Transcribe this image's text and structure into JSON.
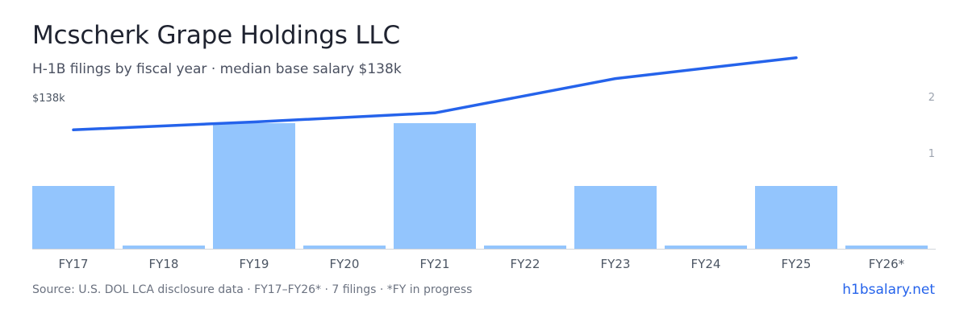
{
  "header": {
    "title": "Mcscherk Grape Holdings LLC",
    "subtitle": "H-1B filings by fiscal year · median base salary $138k"
  },
  "footer": {
    "source": "Source: U.S. DOL LCA disclosure data · FY17–FY26* · 7 filings · *FY in progress",
    "brand": "h1bsalary.net"
  },
  "colors": {
    "bar": "#93c5fd",
    "line": "#2563eb",
    "axis": "#d1d5db",
    "tick_text": "#4b5563",
    "muted_text": "#9ca3af"
  },
  "chart_data": {
    "type": "bar",
    "categories": [
      "FY17",
      "FY18",
      "FY19",
      "FY20",
      "FY21",
      "FY22",
      "FY23",
      "FY24",
      "FY25",
      "FY26*"
    ],
    "series": [
      {
        "values": [
          1,
          0,
          2,
          0,
          2,
          0,
          1,
          0,
          1,
          0
        ]
      },
      {
        "type": "line",
        "values": [
          1.41,
          null,
          1.55,
          null,
          1.71,
          null,
          2.32,
          null,
          2.69,
          null
        ]
      }
    ],
    "left_axis_label": "$138k",
    "right_axis_ticks": [
      "2",
      "1"
    ],
    "ylim": [
      0,
      2
    ],
    "grid": false
  }
}
